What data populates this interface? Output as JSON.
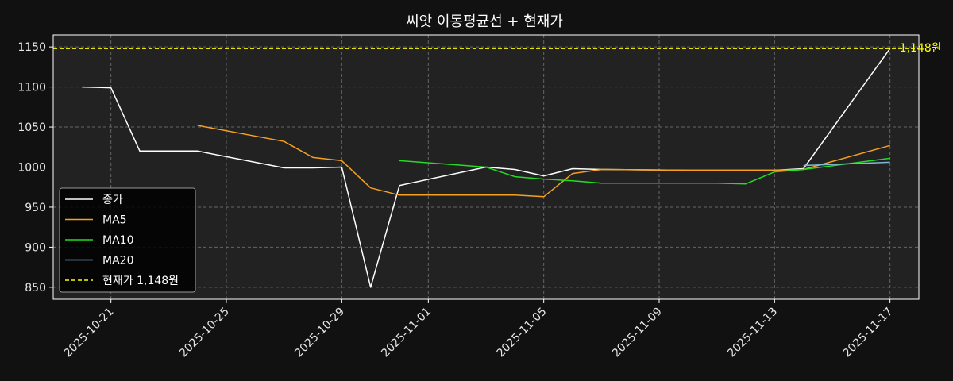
{
  "chart_data": {
    "type": "line",
    "title": "씨앗 이동평균선 + 현재가",
    "xlabel": "",
    "ylabel": "",
    "x_ticks": [
      "2025-10-21",
      "2025-10-25",
      "2025-10-29",
      "2025-11-01",
      "2025-11-05",
      "2025-11-09",
      "2025-11-13",
      "2025-11-17"
    ],
    "y_ticks": [
      850,
      900,
      950,
      1000,
      1050,
      1100,
      1150
    ],
    "xlim": [
      "2025-10-19",
      "2025-11-18"
    ],
    "ylim": [
      835,
      1165
    ],
    "grid": true,
    "legend_position": "lower-left",
    "series": [
      {
        "name": "종가",
        "color": "#ffffff",
        "style": "solid",
        "points": [
          [
            "2025-10-20",
            1100
          ],
          [
            "2025-10-21",
            1099
          ],
          [
            "2025-10-22",
            1020
          ],
          [
            "2025-10-24",
            1020
          ],
          [
            "2025-10-27",
            999
          ],
          [
            "2025-10-28",
            999
          ],
          [
            "2025-10-29",
            1000
          ],
          [
            "2025-10-30",
            850
          ],
          [
            "2025-10-31",
            977
          ],
          [
            "2025-11-03",
            1000
          ],
          [
            "2025-11-04",
            997
          ],
          [
            "2025-11-05",
            989
          ],
          [
            "2025-11-06",
            998
          ],
          [
            "2025-11-07",
            997
          ],
          [
            "2025-11-10",
            996
          ],
          [
            "2025-11-11",
            996
          ],
          [
            "2025-11-12",
            996
          ],
          [
            "2025-11-13",
            996
          ],
          [
            "2025-11-14",
            998
          ],
          [
            "2025-11-17",
            1148
          ]
        ]
      },
      {
        "name": "MA5",
        "color": "#f5a020",
        "style": "solid",
        "points": [
          [
            "2025-10-24",
            1052
          ],
          [
            "2025-10-27",
            1032
          ],
          [
            "2025-10-28",
            1012
          ],
          [
            "2025-10-29",
            1008
          ],
          [
            "2025-10-30",
            974
          ],
          [
            "2025-10-31",
            965
          ],
          [
            "2025-11-03",
            965
          ],
          [
            "2025-11-04",
            965
          ],
          [
            "2025-11-05",
            963
          ],
          [
            "2025-11-06",
            992
          ],
          [
            "2025-11-07",
            997
          ],
          [
            "2025-11-10",
            996
          ],
          [
            "2025-11-11",
            996
          ],
          [
            "2025-11-12",
            996
          ],
          [
            "2025-11-13",
            996
          ],
          [
            "2025-11-14",
            997
          ],
          [
            "2025-11-17",
            1027
          ]
        ]
      },
      {
        "name": "MA10",
        "color": "#22dd22",
        "style": "solid",
        "points": [
          [
            "2025-10-31",
            1008
          ],
          [
            "2025-11-03",
            1000
          ],
          [
            "2025-11-04",
            988
          ],
          [
            "2025-11-05",
            985
          ],
          [
            "2025-11-06",
            983
          ],
          [
            "2025-11-07",
            980
          ],
          [
            "2025-11-10",
            980
          ],
          [
            "2025-11-11",
            980
          ],
          [
            "2025-11-12",
            979
          ],
          [
            "2025-11-13",
            994
          ],
          [
            "2025-11-14",
            997
          ],
          [
            "2025-11-17",
            1011
          ]
        ]
      },
      {
        "name": "MA20",
        "color": "#7fb7d8",
        "style": "solid",
        "points": [
          [
            "2025-11-14",
            1002
          ],
          [
            "2025-11-17",
            1006
          ]
        ]
      },
      {
        "name": "현재가 1,148원",
        "color": "#ffff00",
        "style": "dashed",
        "hline": 1148
      }
    ],
    "annotations": [
      {
        "text": "1,148원",
        "x": "2025-11-17",
        "y": 1148,
        "color": "#ffff00"
      }
    ]
  }
}
